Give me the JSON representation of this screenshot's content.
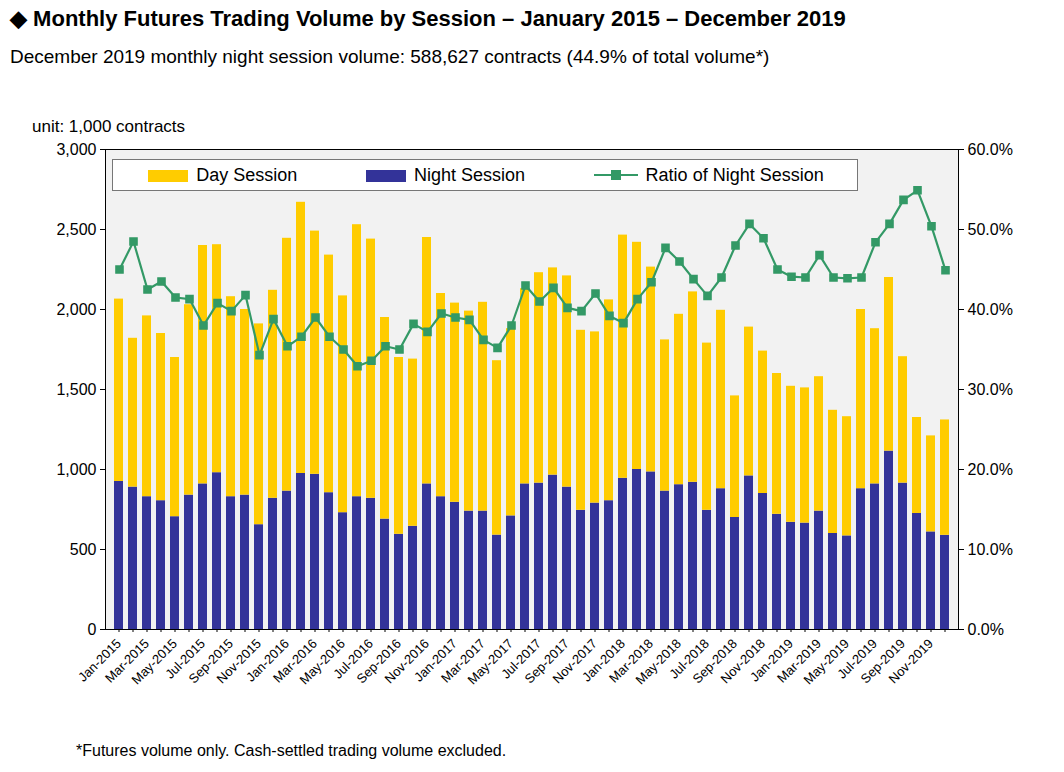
{
  "chart_data": {
    "type": "bar",
    "title": "◆ Monthly Futures Trading Volume by Session – January 2015 – December 2019",
    "subtitle": "December 2019 monthly night session volume: 588,627 contracts (44.9% of total volume*)",
    "y_label": "unit: 1,000 contracts",
    "footnote": "*Futures volume only. Cash-settled trading volume excluded.",
    "categories": [
      "Jan-2015",
      null,
      "Mar-2015",
      null,
      "May-2015",
      null,
      "Jul-2015",
      null,
      "Sep-2015",
      null,
      "Nov-2015",
      null,
      "Jan-2016",
      null,
      "Mar-2016",
      null,
      "May-2016",
      null,
      "Jul-2016",
      null,
      "Sep-2016",
      null,
      "Nov-2016",
      null,
      "Jan-2017",
      null,
      "Mar-2017",
      null,
      "May-2017",
      null,
      "Jul-2017",
      null,
      "Sep-2017",
      null,
      "Nov-2017",
      null,
      "Jan-2018",
      null,
      "Mar-2018",
      null,
      "May-2018",
      null,
      "Jul-2018",
      null,
      "Sep-2018",
      null,
      "Nov-2018",
      null,
      "Jan-2019",
      null,
      "Mar-2019",
      null,
      "May-2019",
      null,
      "Jul-2019",
      null,
      "Sep-2019",
      null,
      "Nov-2019",
      null
    ],
    "series": [
      {
        "name": "Day Session",
        "color": "#ffcc00",
        "values": [
          1140,
          930,
          1130,
          1045,
          995,
          1190,
          1490,
          1425,
          1250,
          1160,
          1255,
          1300,
          1580,
          1695,
          1520,
          1485,
          1355,
          1700,
          1620,
          1260,
          1105,
          1045,
          1540,
          1270,
          1245,
          1250,
          1305,
          1090,
          1170,
          1220,
          1315,
          1295,
          1320,
          1125,
          1070,
          1255,
          1520,
          1420,
          1280,
          945,
          1065,
          1190,
          1045,
          1115,
          760,
          930,
          890,
          880,
          850,
          845,
          840,
          770,
          745,
          1120,
          970,
          1085,
          790,
          600,
          600,
          721
        ]
      },
      {
        "name": "Night Session",
        "color": "#333399",
        "values": [
          925,
          890,
          830,
          805,
          705,
          840,
          910,
          980,
          830,
          840,
          655,
          820,
          865,
          975,
          970,
          855,
          730,
          830,
          820,
          690,
          595,
          645,
          910,
          830,
          795,
          740,
          740,
          590,
          710,
          910,
          915,
          965,
          890,
          745,
          790,
          805,
          945,
          1000,
          985,
          865,
          905,
          920,
          745,
          880,
          700,
          960,
          850,
          720,
          670,
          665,
          740,
          600,
          585,
          880,
          910,
          1115,
          915,
          725,
          610,
          588.627
        ]
      },
      {
        "name": "Ratio of Night Session",
        "type": "line",
        "axis": "y2",
        "color": "#339966",
        "marker": "square",
        "line_style": "solid",
        "values": [
          45.0,
          48.5,
          42.5,
          43.5,
          41.5,
          41.3,
          38.0,
          40.8,
          39.8,
          41.8,
          34.3,
          38.8,
          35.4,
          36.6,
          39.0,
          36.6,
          35.0,
          32.9,
          33.6,
          35.4,
          35.0,
          38.2,
          37.2,
          39.5,
          39.0,
          38.7,
          36.2,
          35.2,
          38.0,
          43.0,
          41.0,
          42.7,
          40.2,
          39.8,
          42.0,
          39.2,
          38.3,
          41.3,
          43.4,
          47.7,
          46.0,
          43.8,
          41.7,
          44.0,
          48.0,
          50.7,
          48.9,
          45.0,
          44.1,
          44.0,
          46.8,
          44.0,
          43.9,
          44.0,
          48.4,
          50.7,
          53.7,
          54.9,
          50.4,
          44.9
        ]
      }
    ],
    "stacked": true,
    "ylim": [
      0,
      3000
    ],
    "yticks": [
      0,
      500,
      {
        "value": 1000,
        "label": "1,000"
      },
      {
        "value": 1500,
        "label": "1,500"
      },
      {
        "value": 2000,
        "label": "2,000"
      },
      {
        "value": 2500,
        "label": "2,500"
      },
      {
        "value": 3000,
        "label": "3,000"
      }
    ],
    "y2lim": [
      0,
      60
    ],
    "y2ticks": [
      {
        "value": 0,
        "label": "0.0%"
      },
      {
        "value": 10,
        "label": "10.0%"
      },
      {
        "value": 20,
        "label": "20.0%"
      },
      {
        "value": 30,
        "label": "30.0%"
      },
      {
        "value": 40,
        "label": "40.0%"
      },
      {
        "value": 50,
        "label": "50.0%"
      },
      {
        "value": 60,
        "label": "60.0%"
      }
    ],
    "grid": false,
    "legend": "top"
  }
}
